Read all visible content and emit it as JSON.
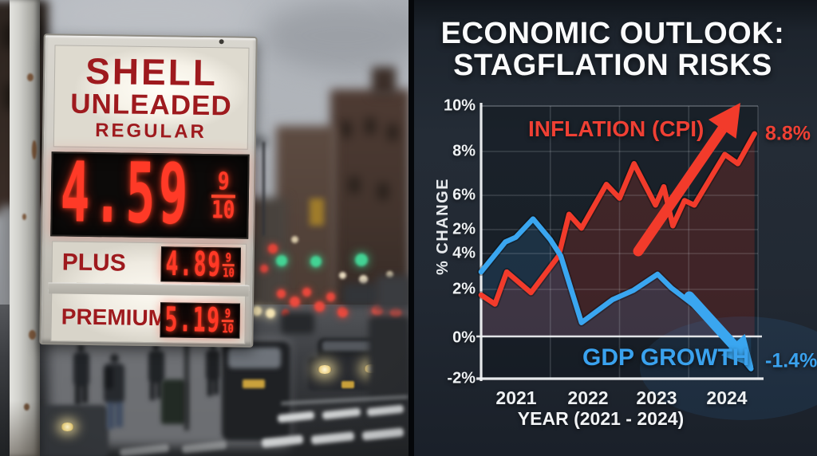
{
  "photo": {
    "sign": {
      "brand": "SHELL",
      "grade": "UNLEADED",
      "subgrade": "REGULAR",
      "regular": {
        "price": "4.59",
        "frac_num": "9",
        "frac_den": "10"
      },
      "rows": [
        {
          "label": "PLUS",
          "price": "4.89",
          "frac_num": "9",
          "frac_den": "10"
        },
        {
          "label": "PREMIUM",
          "price": "5.19",
          "frac_num": "9",
          "frac_den": "10"
        }
      ]
    }
  },
  "chart": {
    "title_line1": "ECONOMIC OUTLOOK:",
    "title_line2": "STAGFLATION RISKS",
    "y_axis_label": "% CHANGE",
    "x_axis_label": "YEAR (2021 - 2024)",
    "y_ticks": [
      "10%",
      "8%",
      "6%",
      "2%",
      "4%",
      "2%",
      "0%",
      "-2%"
    ],
    "x_ticks": [
      "2021",
      "2022",
      "2023",
      "2024"
    ],
    "series_labels": {
      "inflation": "INFLATION (CPI)",
      "gdp": "GDP GROWTH"
    },
    "end_labels": {
      "inflation": "8.8%",
      "gdp": "-1.4%"
    },
    "icons": {
      "inflation": "arrow-up-right",
      "gdp": "arrow-down-right"
    },
    "colors": {
      "inflation": "#f23b2b",
      "gdp": "#3aa6f0",
      "background": "#232b34",
      "grid": "#cfd6dd",
      "text": "#eef1f4"
    }
  },
  "chart_data": {
    "type": "line",
    "title": "ECONOMIC OUTLOOK: STAGFLATION RISKS",
    "xlabel": "YEAR (2021 - 2024)",
    "ylabel": "% CHANGE",
    "x_ticks": [
      2021,
      2022,
      2023,
      2024
    ],
    "y_tick_labels_as_shown": [
      "10%",
      "8%",
      "6%",
      "2%",
      "4%",
      "2%",
      "0%",
      "-2%"
    ],
    "ylim": [
      -2,
      10
    ],
    "xlim": [
      2021,
      2025
    ],
    "grid": true,
    "legend_position": "inline-annotations",
    "series": [
      {
        "name": "INFLATION (CPI)",
        "color": "#f23b2b",
        "end_label": "8.8%",
        "x": [
          2021.0,
          2021.2,
          2021.37,
          2021.72,
          2022.12,
          2022.27,
          2022.45,
          2022.81,
          2023.0,
          2023.21,
          2023.52,
          2023.64,
          2023.77,
          2023.94,
          2024.08,
          2024.52,
          2024.71,
          2024.95
        ],
        "y": [
          1.8,
          1.4,
          2.8,
          1.9,
          3.5,
          5.3,
          4.7,
          6.6,
          6.0,
          7.5,
          5.7,
          6.5,
          4.8,
          5.9,
          5.7,
          7.9,
          7.5,
          8.8
        ]
      },
      {
        "name": "GDP GROWTH",
        "color": "#3aa6f0",
        "end_label": "-1.4%",
        "x": [
          2021.0,
          2021.35,
          2021.5,
          2021.75,
          2022.0,
          2022.15,
          2022.45,
          2022.9,
          2023.2,
          2023.55,
          2023.75,
          2024.1,
          2024.4,
          2024.9
        ],
        "y": [
          2.8,
          4.1,
          4.3,
          5.1,
          4.2,
          3.5,
          0.6,
          1.6,
          2.0,
          2.7,
          2.1,
          1.3,
          0.4,
          -1.4
        ]
      }
    ]
  }
}
